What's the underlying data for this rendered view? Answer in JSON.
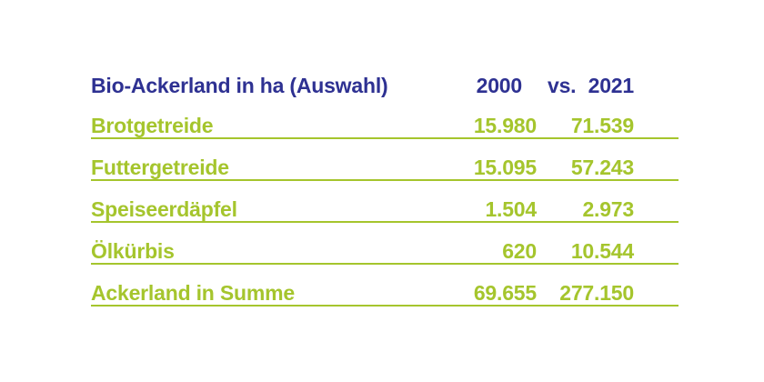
{
  "colors": {
    "green": "#A5C52D",
    "blue": "#2E3192",
    "background": "#FFFFFF"
  },
  "table": {
    "title": "Bio-Ackerland in ha (Auswahl)",
    "header": {
      "year_left": "2000",
      "versus": "vs.",
      "year_right": "2021"
    },
    "rows": [
      {
        "label": "Brotgetreide",
        "y2000": "15.980",
        "y2021": "71.539"
      },
      {
        "label": "Futtergetreide",
        "y2000": "15.095",
        "y2021": "57.243"
      },
      {
        "label": "Speiseerdäpfel",
        "y2000": "1.504",
        "y2021": "2.973"
      },
      {
        "label": "Ölkürbis",
        "y2000": "620",
        "y2021": "10.544"
      },
      {
        "label": "Ackerland in Summe",
        "y2000": "69.655",
        "y2021": "277.150"
      }
    ]
  },
  "chart_data": {
    "type": "table",
    "title": "Bio-Ackerland in ha (Auswahl)",
    "columns": [
      "2000",
      "2021"
    ],
    "unit": "ha",
    "rows": [
      {
        "label": "Brotgetreide",
        "2000": 15980,
        "2021": 71539
      },
      {
        "label": "Futtergetreide",
        "2000": 15095,
        "2021": 57243
      },
      {
        "label": "Speiseerdäpfel",
        "2000": 1504,
        "2021": 2973
      },
      {
        "label": "Ölkürbis",
        "2000": 620,
        "2021": 10544
      },
      {
        "label": "Ackerland in Summe",
        "2000": 69655,
        "2021": 277150
      }
    ]
  }
}
